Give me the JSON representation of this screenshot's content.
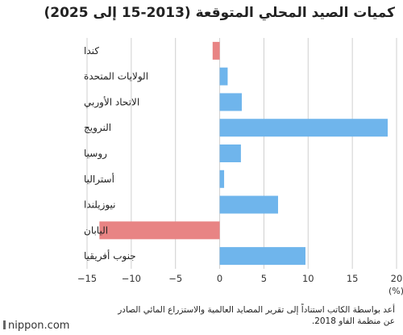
{
  "chart_data": {
    "type": "bar",
    "orientation": "horizontal",
    "title": "كميات الصيد المحلي المتوقعة (2013-15 إلى 2025)",
    "unit": "(%)",
    "categories": [
      "كندا",
      "الولايات المتحدة",
      "الاتحاد الأوربي",
      "النرويج",
      "روسيا",
      "أستراليا",
      "نيوزيلندا",
      "اليابان",
      "جنوب أفريقيا"
    ],
    "values": [
      -0.8,
      0.9,
      2.5,
      19.0,
      2.4,
      0.5,
      6.6,
      -13.6,
      9.7
    ],
    "xlim": [
      -15,
      20
    ],
    "xticks": [
      -15,
      -10,
      -5,
      0,
      5,
      10,
      15,
      20
    ],
    "xtick_labels": [
      "−15",
      "−10",
      "−5",
      "0",
      "5",
      "10",
      "15",
      "20"
    ],
    "grid": "vertical",
    "colors": {
      "positive": "#6fb5ec",
      "negative": "#e88484",
      "grid": "#cfcfcf"
    }
  },
  "source": "أعد بواسطة الكاتب استناداً إلى تقرير المصايد العالمية والاستزراع المائي الصادر عن منظمة الفاو 2018.",
  "brand": "nippon.com"
}
